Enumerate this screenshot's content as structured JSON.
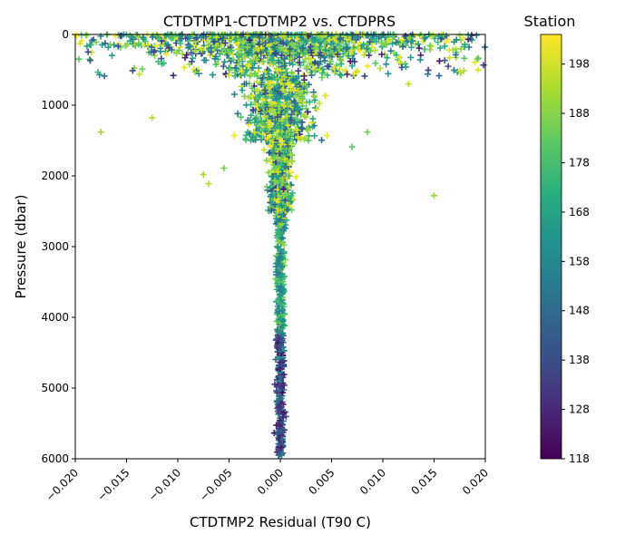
{
  "chart_data": {
    "type": "scatter",
    "marker": "plus",
    "title": "CTDTMP1-CTDTMP2 vs. CTDPRS",
    "xlabel": "CTDTMP2 Residual (T90 C)",
    "ylabel": "Pressure (dbar)",
    "xlim": [
      -0.02,
      0.02
    ],
    "ylim": [
      6000,
      0
    ],
    "y_inverted": true,
    "x_ticks": [
      -0.02,
      -0.015,
      -0.01,
      -0.005,
      0.0,
      0.005,
      0.01,
      0.015,
      0.02
    ],
    "x_tick_labels": [
      "−0.020",
      "−0.015",
      "−0.010",
      "−0.005",
      "0.000",
      "0.005",
      "0.010",
      "0.015",
      "0.020"
    ],
    "y_ticks": [
      0,
      1000,
      2000,
      3000,
      4000,
      5000,
      6000
    ],
    "y_tick_labels": [
      "0",
      "1000",
      "2000",
      "3000",
      "4000",
      "5000",
      "6000"
    ],
    "grid": false,
    "colorbar": {
      "label": "Station",
      "colormap": "viridis",
      "range": [
        118,
        204
      ],
      "ticks": [
        118,
        128,
        138,
        148,
        158,
        168,
        178,
        188,
        198
      ],
      "tick_labels": [
        "118",
        "128",
        "138",
        "148",
        "158",
        "168",
        "178",
        "188",
        "198"
      ]
    },
    "distribution": {
      "description_of_values": "Residuals cluster tightly around 0 at depth and spread widely near the surface",
      "depth_bands": [
        {
          "pressure_range": [
            0,
            200
          ],
          "residual_spread": 0.02
        },
        {
          "pressure_range": [
            200,
            600
          ],
          "residual_spread": 0.012
        },
        {
          "pressure_range": [
            600,
            1500
          ],
          "residual_spread": 0.004
        },
        {
          "pressure_range": [
            1500,
            2500
          ],
          "residual_spread": 0.0015
        },
        {
          "pressure_range": [
            2500,
            6000
          ],
          "residual_spread": 0.0005
        }
      ],
      "notable_outliers": [
        {
          "x": 0.015,
          "y": 2280,
          "station": 190
        },
        {
          "x": -0.0175,
          "y": 1380,
          "station": 192
        },
        {
          "x": -0.0125,
          "y": 1180,
          "station": 194
        },
        {
          "x": -0.0075,
          "y": 1980,
          "station": 192
        },
        {
          "x": -0.007,
          "y": 2110,
          "station": 194
        },
        {
          "x": 0.0085,
          "y": 1380,
          "station": 186
        },
        {
          "x": 0.007,
          "y": 1590,
          "station": 182
        },
        {
          "x": -0.0055,
          "y": 1890,
          "station": 186
        },
        {
          "x": 0.0125,
          "y": 700,
          "station": 196
        },
        {
          "x": 0.0175,
          "y": 520,
          "station": 198
        }
      ]
    },
    "colors": {
      "axes": "#000000",
      "background": "#ffffff"
    }
  }
}
